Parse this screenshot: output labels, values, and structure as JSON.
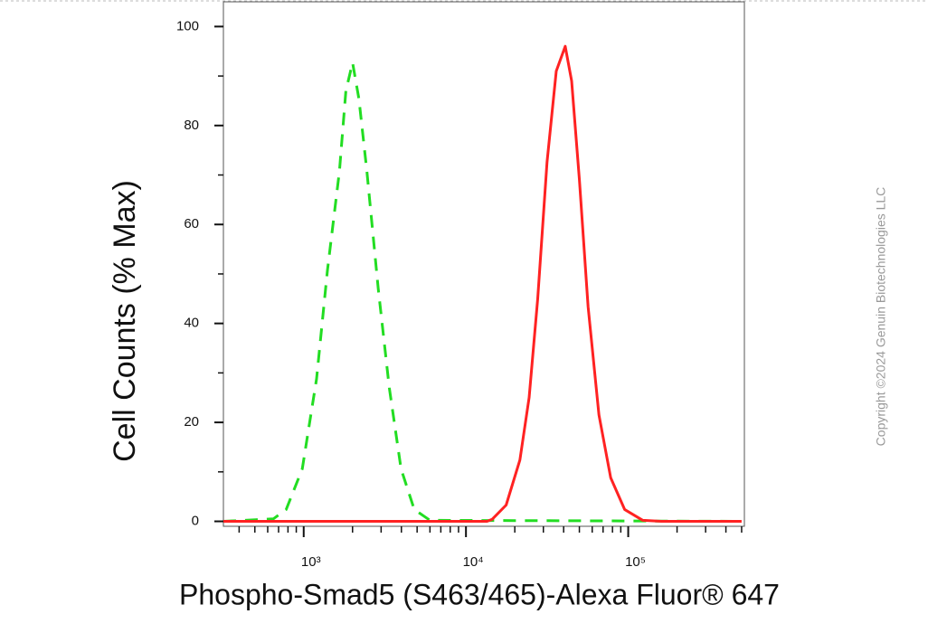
{
  "chart_data": {
    "type": "line",
    "x_label": "Phospho-Smad5 (S463/465)-Alexa Fluor® 647",
    "y_label": "Cell Counts (% Max)",
    "annotation": "Copyright ©2024 Genuin Biotechnologies LLC",
    "x_scale": "log",
    "xlim": [
      320,
      520000
    ],
    "ylim": [
      -1,
      105
    ],
    "xticks": [
      {
        "value": 1000,
        "label": "10³"
      },
      {
        "value": 10000,
        "label": "10⁴"
      },
      {
        "value": 100000,
        "label": "10⁵"
      }
    ],
    "xminorticks": [
      400,
      500,
      600,
      700,
      800,
      900,
      2000,
      3000,
      4000,
      5000,
      6000,
      7000,
      8000,
      9000,
      20000,
      30000,
      40000,
      50000,
      60000,
      70000,
      80000,
      90000,
      200000,
      300000,
      400000,
      500000
    ],
    "yticks": [
      0,
      20,
      40,
      60,
      80,
      100
    ],
    "yminorticks": [
      10,
      30,
      50,
      70,
      90
    ],
    "series": [
      {
        "color": "#22dd22",
        "dash": true,
        "x": [
          320,
          650,
          780,
          980,
          1200,
          1400,
          1660,
          1820,
          2000,
          2190,
          2450,
          2880,
          3370,
          3980,
          4800,
          6000,
          500000
        ],
        "values": [
          0,
          0.5,
          2.4,
          10.6,
          28.8,
          50.7,
          70.8,
          87,
          92.7,
          85.4,
          70.8,
          47,
          27,
          10.6,
          2.4,
          0.2,
          0
        ]
      },
      {
        "color": "#ff2222",
        "dash": false,
        "x": [
          320,
          13500,
          14500,
          17700,
          21500,
          24500,
          27700,
          31600,
          36000,
          40900,
          44800,
          50000,
          56600,
          66000,
          78000,
          95000,
          123000,
          160000,
          500000
        ],
        "values": [
          0,
          0,
          0.4,
          3.3,
          12.4,
          25,
          45,
          72.6,
          91,
          96,
          89,
          69,
          43.4,
          21.5,
          8.8,
          2.4,
          0.2,
          0,
          0
        ]
      }
    ]
  }
}
